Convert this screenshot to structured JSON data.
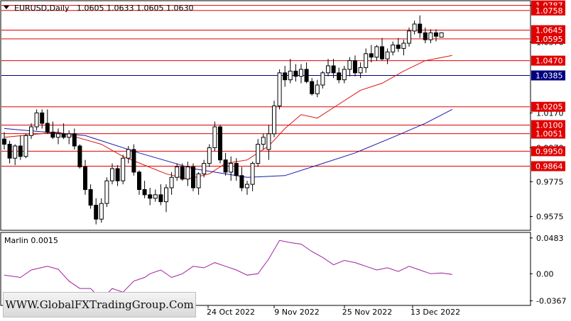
{
  "header": {
    "symbol": "EURUSD,Daily",
    "ohlc": "1.0605 1.0633 1.0605 1.0630"
  },
  "indicator": {
    "label": "Marlin 0.0015",
    "axis_labels": [
      "0.0483",
      "0.00",
      "-0.0367"
    ]
  },
  "watermark": "WWW.GlobalFXTradingGroup.Com",
  "colors": {
    "bull_candle": "#ffffff",
    "bear_candle": "#000000",
    "red_level": "#e00000",
    "blue_level": "#000080",
    "ma_fast": "#dd1111",
    "ma_slow": "#1a1aaa",
    "indicator_line": "#a020a0"
  },
  "chart_data": {
    "type": "candlestick",
    "x_labels": [
      "24 Oct 2022",
      "9 Nov 2022",
      "25 Nov 2022",
      "13 Dec 2022"
    ],
    "y_ticks": [
      "1.0787",
      "1.0576",
      "1.0170",
      "0.9970",
      "0.9775",
      "0.9575"
    ],
    "ylim": [
      0.95,
      1.081
    ],
    "levels_red": [
      {
        "value": 1.0787,
        "label": "1.0787"
      },
      {
        "value": 1.0758,
        "label": "1.0758"
      },
      {
        "value": 1.0645,
        "label": "1.0645"
      },
      {
        "value": 1.0595,
        "label": "1.0595"
      },
      {
        "value": 1.047,
        "label": "1.0470"
      },
      {
        "value": 1.0205,
        "label": "1.0205"
      },
      {
        "value": 1.01,
        "label": "1.0100"
      },
      {
        "value": 1.0051,
        "label": "1.0051"
      },
      {
        "value": 0.995,
        "label": "0.9950"
      },
      {
        "value": 0.9864,
        "label": "0.9864"
      }
    ],
    "level_blue": {
      "value": 1.0385,
      "label": "1.0385"
    },
    "current_price": 1.063,
    "candles": [
      [
        1.002,
        1.006,
        0.996,
        0.999
      ],
      [
        0.999,
        1.001,
        0.988,
        0.991
      ],
      [
        0.991,
        0.999,
        0.987,
        0.998
      ],
      [
        0.998,
        1.004,
        0.99,
        0.992
      ],
      [
        0.992,
        1.005,
        0.991,
        1.004
      ],
      [
        1.004,
        1.011,
        1.002,
        1.009
      ],
      [
        1.009,
        1.019,
        1.007,
        1.017
      ],
      [
        1.017,
        1.019,
        1.008,
        1.011
      ],
      [
        1.011,
        1.019,
        1.005,
        1.006
      ],
      [
        1.006,
        1.012,
        1.002,
        1.003
      ],
      [
        1.003,
        1.008,
        0.999,
        1.005
      ],
      [
        1.005,
        1.011,
        1.002,
        1.003
      ],
      [
        1.003,
        1.007,
        0.999,
        1.005
      ],
      [
        1.005,
        1.008,
        0.996,
        0.998
      ],
      [
        0.998,
        0.999,
        0.985,
        0.986
      ],
      [
        0.986,
        0.99,
        0.97,
        0.973
      ],
      [
        0.973,
        0.976,
        0.962,
        0.964
      ],
      [
        0.964,
        0.968,
        0.953,
        0.956
      ],
      [
        0.956,
        0.968,
        0.954,
        0.965
      ],
      [
        0.965,
        0.98,
        0.963,
        0.978
      ],
      [
        0.978,
        0.988,
        0.976,
        0.985
      ],
      [
        0.985,
        0.987,
        0.975,
        0.978
      ],
      [
        0.978,
        0.993,
        0.976,
        0.991
      ],
      [
        0.991,
        0.998,
        0.988,
        0.996
      ],
      [
        0.996,
        0.999,
        0.981,
        0.983
      ],
      [
        0.983,
        0.984,
        0.97,
        0.973
      ],
      [
        0.973,
        0.978,
        0.968,
        0.97
      ],
      [
        0.97,
        0.974,
        0.964,
        0.968
      ],
      [
        0.968,
        0.973,
        0.966,
        0.97
      ],
      [
        0.97,
        0.976,
        0.964,
        0.966
      ],
      [
        0.966,
        0.976,
        0.96,
        0.974
      ],
      [
        0.974,
        0.983,
        0.97,
        0.98
      ],
      [
        0.98,
        0.988,
        0.978,
        0.986
      ],
      [
        0.986,
        0.988,
        0.978,
        0.979
      ],
      [
        0.979,
        0.989,
        0.975,
        0.986
      ],
      [
        0.986,
        0.988,
        0.972,
        0.974
      ],
      [
        0.974,
        0.983,
        0.97,
        0.982
      ],
      [
        0.982,
        0.99,
        0.98,
        0.988
      ],
      [
        0.988,
        0.999,
        0.986,
        0.997
      ],
      [
        0.997,
        1.012,
        0.995,
        1.009
      ],
      [
        1.009,
        1.01,
        0.988,
        0.99
      ],
      [
        0.99,
        0.994,
        0.981,
        0.983
      ],
      [
        0.983,
        0.992,
        0.978,
        0.988
      ],
      [
        0.988,
        0.991,
        0.978,
        0.981
      ],
      [
        0.981,
        0.986,
        0.972,
        0.974
      ],
      [
        0.974,
        0.978,
        0.97,
        0.976
      ],
      [
        0.976,
        0.989,
        0.972,
        0.988
      ],
      [
        0.988,
        1.002,
        0.986,
        0.999
      ],
      [
        0.999,
        1.005,
        0.996,
        1.003
      ],
      [
        0.996,
        1.01,
        0.99,
        1.005
      ],
      [
        1.005,
        1.024,
        1.003,
        1.021
      ],
      [
        1.021,
        1.042,
        1.019,
        1.04
      ],
      [
        1.04,
        1.044,
        1.032,
        1.036
      ],
      [
        1.036,
        1.048,
        1.034,
        1.041
      ],
      [
        1.041,
        1.045,
        1.035,
        1.038
      ],
      [
        1.038,
        1.045,
        1.034,
        1.042
      ],
      [
        1.042,
        1.046,
        1.034,
        1.035
      ],
      [
        1.035,
        1.037,
        1.027,
        1.028
      ],
      [
        1.028,
        1.036,
        1.026,
        1.033
      ],
      [
        1.033,
        1.041,
        1.031,
        1.04
      ],
      [
        1.04,
        1.048,
        1.038,
        1.044
      ],
      [
        1.044,
        1.048,
        1.037,
        1.04
      ],
      [
        1.04,
        1.043,
        1.034,
        1.036
      ],
      [
        1.036,
        1.044,
        1.034,
        1.042
      ],
      [
        1.042,
        1.049,
        1.038,
        1.047
      ],
      [
        1.047,
        1.05,
        1.038,
        1.04
      ],
      [
        1.04,
        1.046,
        1.037,
        1.043
      ],
      [
        1.043,
        1.054,
        1.04,
        1.051
      ],
      [
        1.051,
        1.056,
        1.046,
        1.049
      ],
      [
        1.049,
        1.056,
        1.047,
        1.055
      ],
      [
        1.055,
        1.06,
        1.047,
        1.048
      ],
      [
        1.048,
        1.054,
        1.045,
        1.052
      ],
      [
        1.052,
        1.058,
        1.05,
        1.056
      ],
      [
        1.056,
        1.06,
        1.052,
        1.054
      ],
      [
        1.054,
        1.059,
        1.05,
        1.057
      ],
      [
        1.057,
        1.066,
        1.055,
        1.064
      ],
      [
        1.064,
        1.07,
        1.062,
        1.068
      ],
      [
        1.068,
        1.073,
        1.06,
        1.063
      ],
      [
        1.063,
        1.066,
        1.057,
        1.059
      ],
      [
        1.059,
        1.065,
        1.057,
        1.063
      ],
      [
        1.063,
        1.065,
        1.058,
        1.061
      ],
      [
        1.0605,
        1.0633,
        1.0605,
        1.063
      ]
    ],
    "ma_fast": [
      [
        0,
        1.003
      ],
      [
        10,
        1.006
      ],
      [
        18,
        0.999
      ],
      [
        22,
        0.992
      ],
      [
        26,
        0.987
      ],
      [
        30,
        0.982
      ],
      [
        34,
        0.979
      ],
      [
        38,
        0.982
      ],
      [
        41,
        0.988
      ],
      [
        45,
        0.99
      ],
      [
        49,
        0.998
      ],
      [
        52,
        1.008
      ],
      [
        55,
        1.016
      ],
      [
        58,
        1.014
      ],
      [
        62,
        1.022
      ],
      [
        66,
        1.03
      ],
      [
        70,
        1.034
      ],
      [
        74,
        1.041
      ],
      [
        78,
        1.047
      ],
      [
        83,
        1.05
      ]
    ],
    "ma_slow": [
      [
        0,
        1.008
      ],
      [
        15,
        1.004
      ],
      [
        25,
        0.994
      ],
      [
        35,
        0.985
      ],
      [
        45,
        0.98
      ],
      [
        52,
        0.981
      ],
      [
        58,
        0.987
      ],
      [
        65,
        0.994
      ],
      [
        72,
        1.003
      ],
      [
        78,
        1.011
      ],
      [
        83,
        1.019
      ]
    ],
    "indicator_values": [
      [
        0,
        -0.002
      ],
      [
        3,
        -0.005
      ],
      [
        5,
        0.005
      ],
      [
        8,
        0.01
      ],
      [
        10,
        0.006
      ],
      [
        12,
        -0.01
      ],
      [
        14,
        -0.02
      ],
      [
        16,
        -0.02
      ],
      [
        18,
        -0.035
      ],
      [
        20,
        -0.02
      ],
      [
        22,
        -0.025
      ],
      [
        24,
        -0.01
      ],
      [
        26,
        -0.005
      ],
      [
        27,
        0.0
      ],
      [
        29,
        0.005
      ],
      [
        31,
        -0.005
      ],
      [
        33,
        0.0
      ],
      [
        35,
        0.01
      ],
      [
        37,
        0.008
      ],
      [
        39,
        0.015
      ],
      [
        41,
        0.01
      ],
      [
        43,
        0.005
      ],
      [
        45,
        -0.002
      ],
      [
        47,
        0.0
      ],
      [
        49,
        0.02
      ],
      [
        51,
        0.045
      ],
      [
        53,
        0.042
      ],
      [
        55,
        0.04
      ],
      [
        57,
        0.03
      ],
      [
        59,
        0.022
      ],
      [
        61,
        0.012
      ],
      [
        63,
        0.018
      ],
      [
        65,
        0.015
      ],
      [
        67,
        0.01
      ],
      [
        69,
        0.005
      ],
      [
        71,
        0.008
      ],
      [
        73,
        0.003
      ],
      [
        75,
        0.01
      ],
      [
        77,
        0.005
      ],
      [
        79,
        0.0
      ],
      [
        81,
        0.001
      ],
      [
        83,
        -0.001
      ]
    ],
    "indicator_ylim": [
      -0.04,
      0.052
    ]
  }
}
